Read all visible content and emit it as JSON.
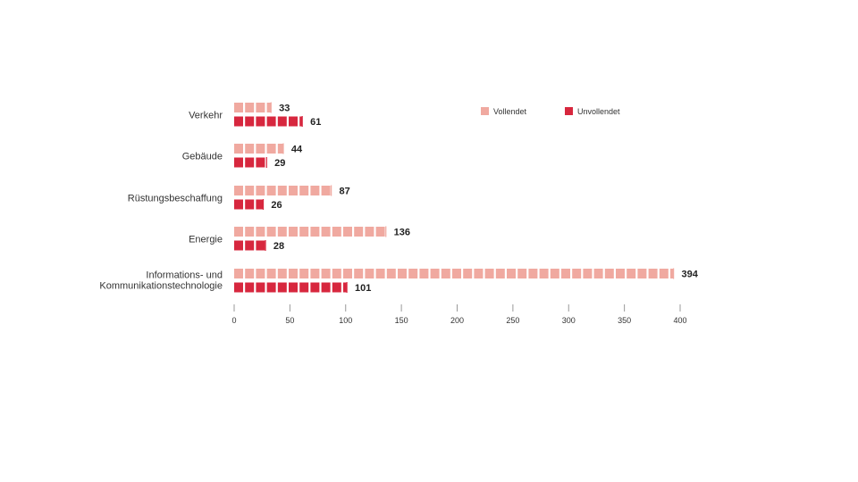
{
  "chart_data": {
    "type": "bar",
    "orientation": "horizontal",
    "categories": [
      [
        "Verkehr"
      ],
      [
        "Gebäude"
      ],
      [
        "Rüstungsbeschaffung"
      ],
      [
        "Energie"
      ],
      [
        "Informations- und",
        "Kommunikationstechnologie"
      ]
    ],
    "series": [
      {
        "name": "Vollendet",
        "color": "#f0a9a0",
        "values": [
          33,
          44,
          87,
          136,
          394
        ]
      },
      {
        "name": "Unvollendet",
        "color": "#d7273e",
        "values": [
          61,
          29,
          26,
          28,
          101
        ]
      }
    ],
    "xlim": [
      0,
      400
    ],
    "xticks": [
      0,
      50,
      100,
      150,
      200,
      250,
      300,
      350,
      400
    ],
    "legend_position": "top-right",
    "grid": false
  }
}
